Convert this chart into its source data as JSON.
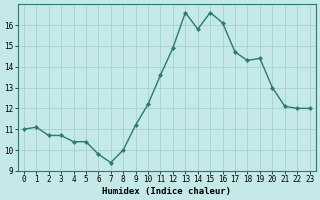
{
  "x": [
    0,
    1,
    2,
    3,
    4,
    5,
    6,
    7,
    8,
    9,
    10,
    11,
    12,
    13,
    14,
    15,
    16,
    17,
    18,
    19,
    20,
    21,
    22,
    23
  ],
  "y": [
    11.0,
    11.1,
    10.7,
    10.7,
    10.4,
    10.4,
    9.8,
    9.4,
    10.0,
    11.2,
    12.2,
    13.6,
    14.9,
    16.6,
    15.8,
    16.6,
    16.1,
    14.7,
    14.3,
    14.4,
    13.0,
    12.1,
    12.0,
    12.0
  ],
  "xlabel": "Humidex (Indice chaleur)",
  "ylim": [
    9,
    17
  ],
  "xlim_min": -0.5,
  "xlim_max": 23.5,
  "yticks": [
    9,
    10,
    11,
    12,
    13,
    14,
    15,
    16
  ],
  "xticks": [
    0,
    1,
    2,
    3,
    4,
    5,
    6,
    7,
    8,
    9,
    10,
    11,
    12,
    13,
    14,
    15,
    16,
    17,
    18,
    19,
    20,
    21,
    22,
    23
  ],
  "line_color": "#2d7a6e",
  "marker": "D",
  "marker_size": 2.0,
  "bg_color": "#c5e8e8",
  "grid_color": "#9dcece",
  "line_width": 1.0,
  "tick_fontsize": 5.5,
  "xlabel_fontsize": 6.5
}
